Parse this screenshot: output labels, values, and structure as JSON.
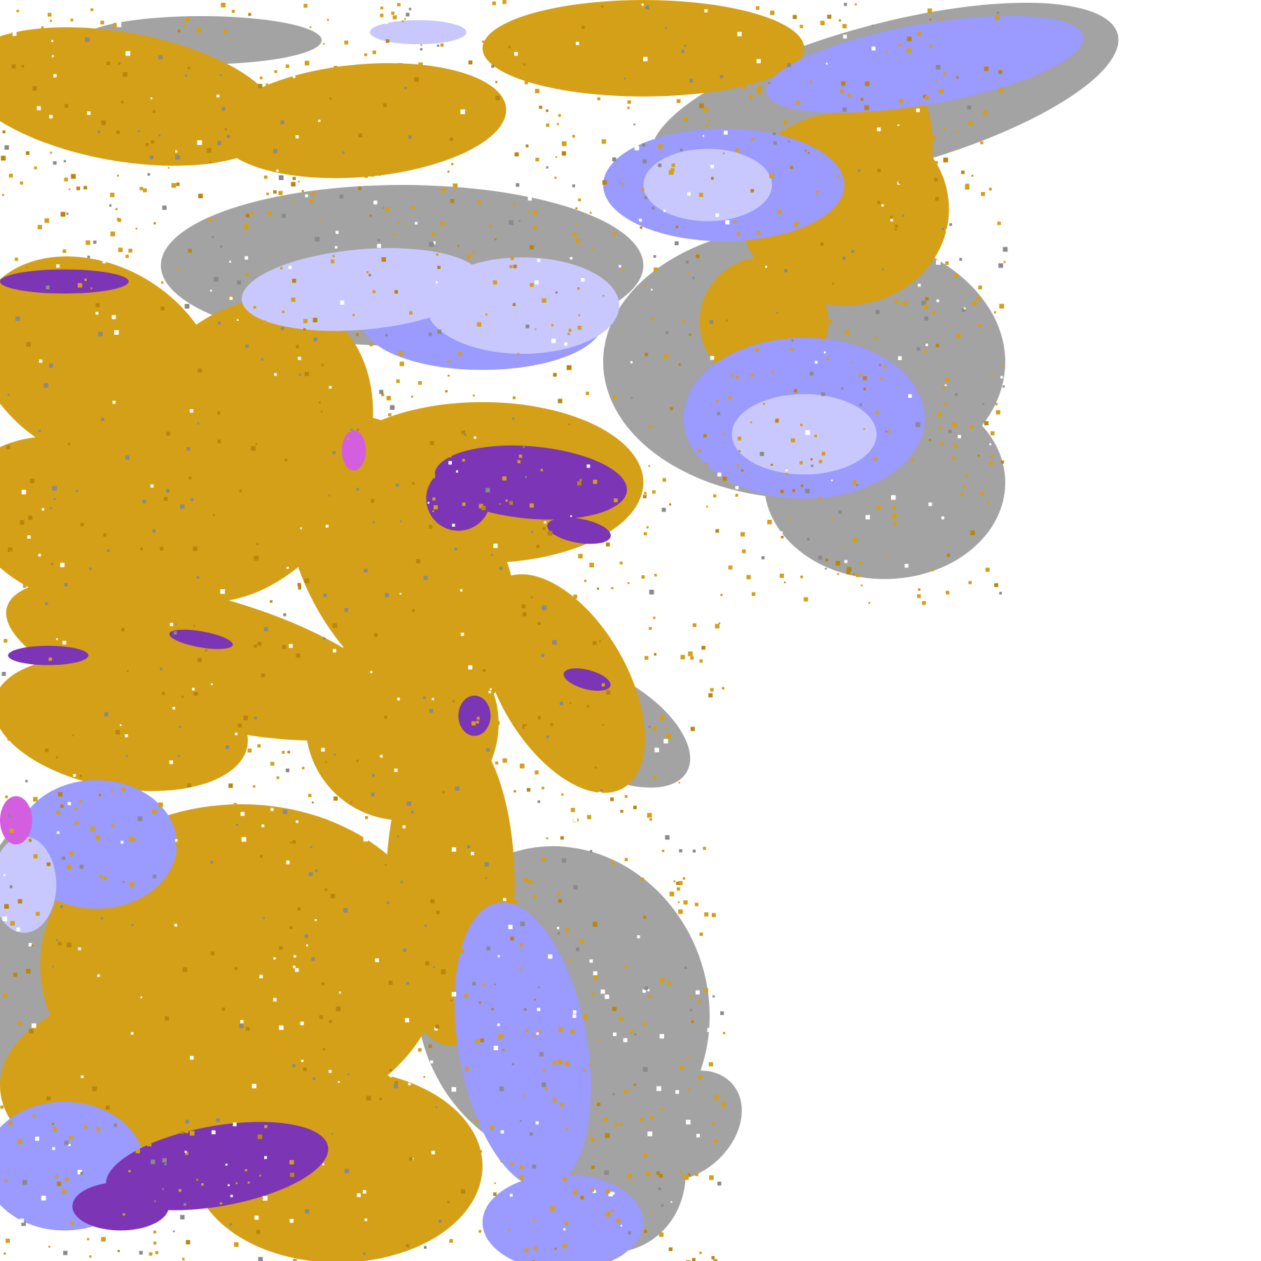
{
  "map": {
    "colors": {
      "background": "#ffffff",
      "gold": "#d4a017",
      "dark_gold": "#b8860b",
      "purple": "#7b35b5",
      "magenta": "#d35fe0",
      "lavender": "#c8c8ff",
      "periwinkle": "#9a9aff",
      "gray": "#a3a3a3",
      "dark_gray": "#8a8a8a"
    }
  }
}
